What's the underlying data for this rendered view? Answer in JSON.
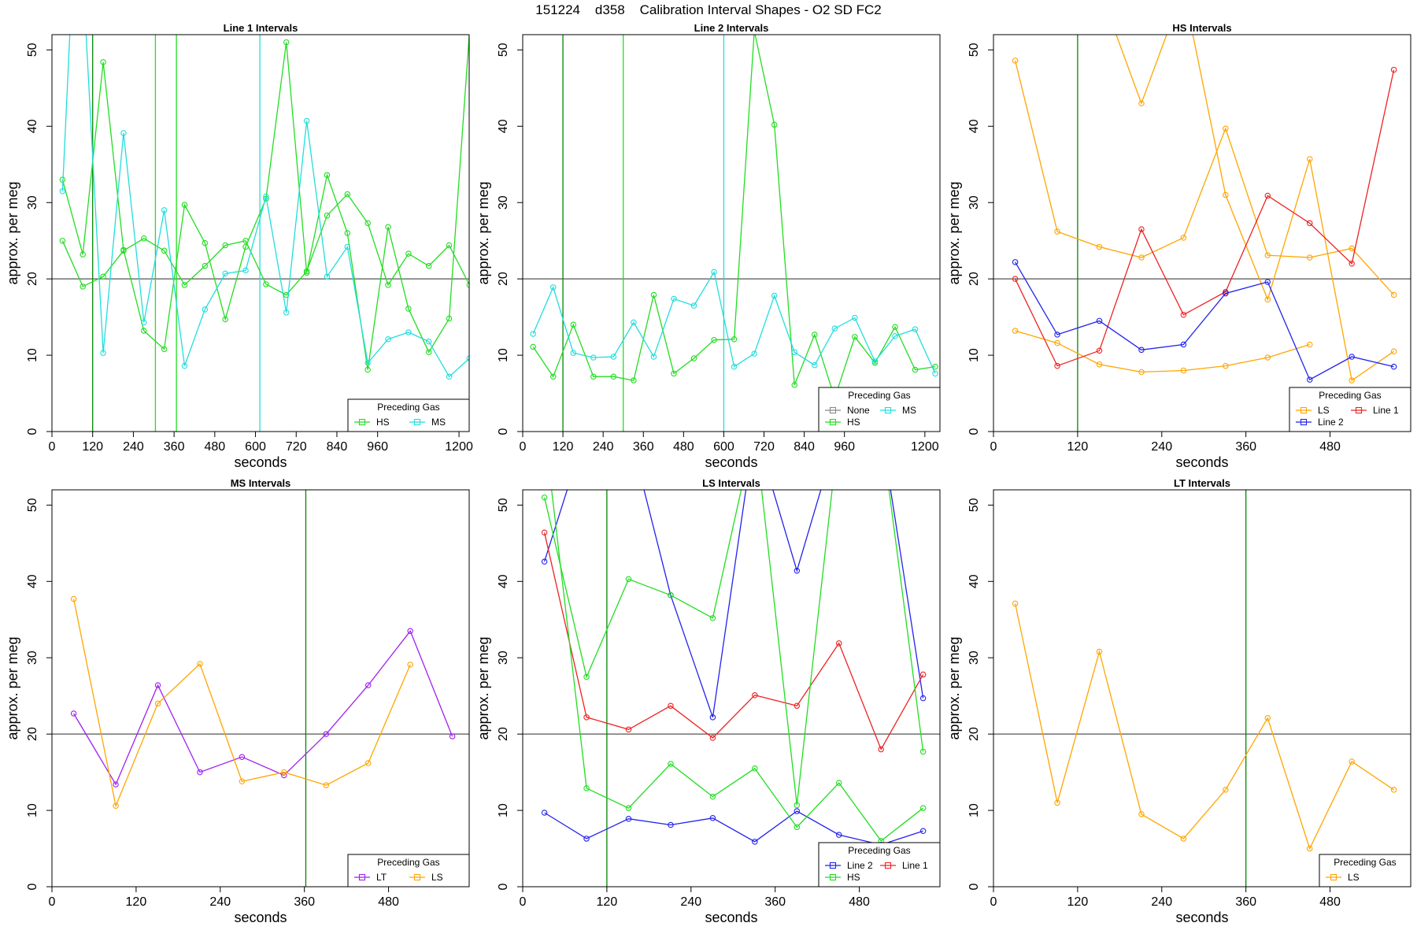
{
  "suptitle": "151224    d358    Calibration Interval Shapes - O2 SD FC2",
  "colors": {
    "HS": "#22dd22",
    "MS": "#22dddd",
    "LS": "#ffa500",
    "LT": "#a020f0",
    "Line 1": "#ee2222",
    "Line 2": "#2222ee",
    "None": "#888888",
    "hline": "#555555",
    "vline_green": "#008800"
  },
  "chart_data": [
    {
      "type": "line",
      "title": "Line 1 Intervals",
      "xlabel": "seconds",
      "ylabel": "approx. per meg",
      "xlim": [
        0,
        1230
      ],
      "ylim": [
        0,
        52
      ],
      "xticks": [
        0,
        120,
        240,
        360,
        480,
        600,
        720,
        840,
        960,
        1200
      ],
      "yticks": [
        0,
        10,
        20,
        30,
        40,
        50
      ],
      "hline": 20,
      "vlines": [
        {
          "x": 120,
          "color": "#008800"
        },
        {
          "x": 305,
          "color": "#22dd22"
        },
        {
          "x": 367,
          "color": "#22dd22"
        },
        {
          "x": 613,
          "color": "#22dddd"
        }
      ],
      "legend": {
        "title": "Preceding Gas",
        "position": "bottom-right",
        "entries": [
          "HS",
          "MS"
        ],
        "cols": 2
      },
      "series": [
        {
          "name": "HS",
          "color": "#22dd22",
          "x": [
            31,
            91,
            151,
            211,
            271,
            331,
            391,
            451,
            511,
            571,
            631,
            691,
            751,
            811,
            871,
            931,
            991,
            1051,
            1111,
            1171,
            1231
          ],
          "y": [
            33,
            23.2,
            48.4,
            23.8,
            13.2,
            10.8,
            29.7,
            24.7,
            14.7,
            24.2,
            30.5,
            51,
            20.8,
            33.6,
            26,
            8.1,
            26.8,
            16.1,
            10.4,
            14.8,
            52.4
          ]
        },
        {
          "name": "HS",
          "color": "#22dd22",
          "x": [
            31,
            91,
            151,
            211,
            271,
            331,
            391,
            451,
            511,
            571,
            631,
            691,
            751,
            811,
            871,
            931,
            991,
            1051,
            1111,
            1171,
            1231
          ],
          "y": [
            25,
            19,
            20.3,
            23.7,
            25.3,
            23.7,
            19.2,
            21.7,
            24.4,
            25,
            19.3,
            17.9,
            21,
            28.3,
            31.1,
            27.3,
            19.2,
            23.3,
            21.7,
            24.4,
            19.2
          ]
        },
        {
          "name": "MS",
          "color": "#22dddd",
          "x": [
            31,
            61,
            91,
            151,
            211,
            271,
            331,
            391,
            451,
            511,
            571,
            631,
            691,
            751,
            811,
            871,
            931,
            991,
            1051,
            1111,
            1171,
            1231
          ],
          "y": [
            31.5,
            60,
            60,
            10.3,
            39.1,
            14.3,
            29,
            8.6,
            16,
            20.7,
            21.1,
            30.8,
            15.6,
            40.7,
            20.3,
            24.2,
            9,
            12.1,
            13,
            11.8,
            7.2,
            9.6
          ]
        }
      ]
    },
    {
      "type": "line",
      "title": "Line 2 Intervals",
      "xlabel": "seconds",
      "ylabel": "approx. per meg",
      "xlim": [
        0,
        1245
      ],
      "ylim": [
        0,
        52
      ],
      "xticks": [
        0,
        120,
        240,
        360,
        480,
        600,
        720,
        840,
        960,
        1200
      ],
      "yticks": [
        0,
        10,
        20,
        30,
        40,
        50
      ],
      "hline": 20,
      "vlines": [
        {
          "x": 120,
          "color": "#008800"
        },
        {
          "x": 300,
          "color": "#22dd22"
        },
        {
          "x": 600,
          "color": "#22dddd"
        }
      ],
      "legend": {
        "title": "Preceding Gas",
        "position": "bottom-right",
        "entries": [
          "None",
          "MS",
          "HS"
        ],
        "cols": 2
      },
      "series": [
        {
          "name": "HS",
          "color": "#22dd22",
          "x": [
            31,
            91,
            151,
            211,
            271,
            331,
            391,
            451,
            511,
            571,
            631,
            691,
            751,
            811,
            871,
            931,
            991,
            1051,
            1111,
            1171,
            1231
          ],
          "y": [
            11.1,
            7.2,
            14,
            7.2,
            7.2,
            6.7,
            17.9,
            7.6,
            9.6,
            12,
            12.1,
            52.5,
            40.2,
            6.1,
            12.7,
            4.4,
            12.4,
            9,
            13.7,
            8.1,
            8.5
          ]
        },
        {
          "name": "MS",
          "color": "#22dddd",
          "x": [
            31,
            91,
            151,
            211,
            271,
            331,
            391,
            451,
            511,
            571,
            631,
            691,
            751,
            811,
            871,
            931,
            991,
            1051,
            1111,
            1171,
            1231
          ],
          "y": [
            12.8,
            18.9,
            10.3,
            9.7,
            9.8,
            14.3,
            9.8,
            17.4,
            16.5,
            20.9,
            8.5,
            10.2,
            17.8,
            10.4,
            8.7,
            13.5,
            14.9,
            9.2,
            12.5,
            13.4,
            7.6
          ]
        }
      ]
    },
    {
      "type": "line",
      "title": "HS Intervals",
      "xlabel": "seconds",
      "ylabel": "approx. per meg",
      "xlim": [
        0,
        595
      ],
      "ylim": [
        0,
        52
      ],
      "xticks": [
        0,
        120,
        240,
        360,
        480
      ],
      "yticks": [
        0,
        10,
        20,
        30,
        40,
        50
      ],
      "hline": 20,
      "vlines": [
        {
          "x": 120,
          "color": "#008800"
        }
      ],
      "legend": {
        "title": "Preceding Gas",
        "position": "bottom-right",
        "entries": [
          "LS",
          "Line 1",
          "Line 2"
        ],
        "cols": 2
      },
      "series": [
        {
          "name": "LS",
          "color": "#ffa500",
          "x": [
            31,
            91,
            151,
            211,
            271,
            331,
            391,
            451,
            511,
            571
          ],
          "y": [
            48.6,
            26.2,
            24.2,
            22.8,
            25.4,
            39.7,
            23.1,
            22.8,
            24,
            17.9
          ]
        },
        {
          "name": "LS",
          "color": "#ffa500",
          "x": [
            31,
            91,
            151,
            211,
            271,
            331,
            391,
            451
          ],
          "y": [
            13.2,
            11.6,
            8.8,
            7.8,
            8,
            8.6,
            9.7,
            11.4
          ]
        },
        {
          "name": "LS",
          "color": "#ffa500",
          "x": [
            151,
            211,
            271,
            331,
            391,
            451,
            511,
            571
          ],
          "y": [
            58,
            43,
            58,
            31,
            17.3,
            35.7,
            6.7,
            10.5
          ]
        },
        {
          "name": "Line 1",
          "color": "#ee2222",
          "x": [
            31,
            91,
            151,
            211,
            271,
            331,
            391,
            451,
            511,
            571
          ],
          "y": [
            20,
            8.6,
            10.6,
            26.5,
            15.3,
            18.3,
            30.9,
            27.3,
            22,
            47.4
          ]
        },
        {
          "name": "Line 2",
          "color": "#2222ee",
          "x": [
            31,
            91,
            151,
            211,
            271,
            331,
            391,
            451,
            511,
            571
          ],
          "y": [
            22.2,
            12.7,
            14.5,
            10.7,
            11.4,
            18.1,
            19.6,
            6.8,
            9.8,
            8.5
          ]
        }
      ]
    },
    {
      "type": "line",
      "title": "MS Intervals",
      "xlabel": "seconds",
      "ylabel": "approx. per meg",
      "xlim": [
        0,
        595
      ],
      "ylim": [
        0,
        52
      ],
      "xticks": [
        0,
        120,
        240,
        360,
        480
      ],
      "yticks": [
        0,
        10,
        20,
        30,
        40,
        50
      ],
      "hline": 20,
      "vlines": [
        {
          "x": 362,
          "color": "#008800"
        }
      ],
      "legend": {
        "title": "Preceding Gas",
        "position": "bottom-right",
        "entries": [
          "LT",
          "LS"
        ],
        "cols": 2
      },
      "series": [
        {
          "name": "LT",
          "color": "#a020f0",
          "x": [
            31,
            91,
            151,
            211,
            271,
            331,
            391,
            451,
            511,
            571
          ],
          "y": [
            22.7,
            13.4,
            26.4,
            15,
            17,
            14.6,
            20,
            26.4,
            33.5,
            19.7
          ]
        },
        {
          "name": "LS",
          "color": "#ffa500",
          "x": [
            31,
            91,
            151,
            211,
            271,
            331,
            391,
            451,
            511
          ],
          "y": [
            37.7,
            10.6,
            24,
            29.2,
            13.8,
            15,
            13.3,
            16.2,
            29.1
          ]
        }
      ]
    },
    {
      "type": "line",
      "title": "LS Intervals",
      "xlabel": "seconds",
      "ylabel": "approx. per meg",
      "xlim": [
        0,
        595
      ],
      "ylim": [
        0,
        52
      ],
      "xticks": [
        0,
        120,
        240,
        360,
        480
      ],
      "yticks": [
        0,
        10,
        20,
        30,
        40,
        50
      ],
      "hline": 20,
      "vlines": [
        {
          "x": 120,
          "color": "#008800"
        }
      ],
      "legend": {
        "title": "Preceding Gas",
        "position": "bottom-right",
        "entries": [
          "Line 2",
          "Line 1",
          "HS"
        ],
        "cols": 2
      },
      "series": [
        {
          "name": "Line 2",
          "color": "#2222ee",
          "x": [
            31,
            91,
            151,
            211,
            271,
            331,
            391,
            451,
            511,
            571
          ],
          "y": [
            42.6,
            60,
            60,
            38.2,
            22.2,
            60,
            41.4,
            60,
            60,
            24.7
          ]
        },
        {
          "name": "Line 2",
          "color": "#2222ee",
          "x": [
            31,
            91,
            151,
            211,
            271,
            331,
            391,
            451,
            511,
            571
          ],
          "y": [
            9.7,
            6.3,
            8.9,
            8.1,
            9,
            5.9,
            9.9,
            6.8,
            5.5,
            7.3
          ]
        },
        {
          "name": "Line 1",
          "color": "#ee2222",
          "x": [
            31,
            91,
            151,
            211,
            271,
            331,
            391,
            451,
            511,
            571
          ],
          "y": [
            46.4,
            22.2,
            20.6,
            23.7,
            19.5,
            25.1,
            23.7,
            31.9,
            18,
            27.8
          ]
        },
        {
          "name": "HS",
          "color": "#22dd22",
          "x": [
            31,
            91,
            151,
            211,
            271,
            331,
            391,
            451,
            511,
            571
          ],
          "y": [
            51,
            27.5,
            40.3,
            38.2,
            35.2,
            60,
            10.7,
            60,
            60,
            17.7
          ]
        },
        {
          "name": "HS",
          "color": "#22dd22",
          "x": [
            31,
            91,
            151,
            211,
            271,
            331,
            391,
            451,
            511,
            571
          ],
          "y": [
            60,
            12.9,
            10.3,
            16.1,
            11.8,
            15.5,
            7.8,
            13.6,
            6,
            10.3
          ]
        }
      ]
    },
    {
      "type": "line",
      "title": "LT Intervals",
      "xlabel": "seconds",
      "ylabel": "approx. per meg",
      "xlim": [
        0,
        595
      ],
      "ylim": [
        0,
        52
      ],
      "xticks": [
        0,
        120,
        240,
        360,
        480
      ],
      "yticks": [
        0,
        10,
        20,
        30,
        40,
        50
      ],
      "hline": 20,
      "vlines": [
        {
          "x": 360,
          "color": "#008800"
        }
      ],
      "legend": {
        "title": "Preceding Gas",
        "position": "bottom-right",
        "entries": [
          "LS"
        ],
        "cols": 1
      },
      "series": [
        {
          "name": "LS",
          "color": "#ffa500",
          "x": [
            31,
            91,
            151,
            211,
            271,
            331,
            391,
            451,
            511,
            571
          ],
          "y": [
            37.1,
            11,
            30.8,
            9.5,
            6.3,
            12.7,
            22.1,
            5,
            16.4,
            12.7
          ]
        }
      ]
    }
  ]
}
